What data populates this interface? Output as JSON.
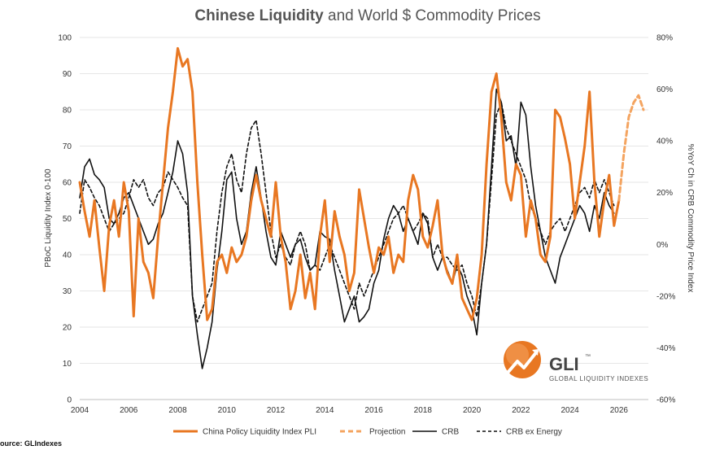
{
  "chart_data": {
    "type": "line",
    "title_bold": "Chinese Liquidity",
    "title_rest": " and World $ Commodity Prices",
    "ylabel_left": "PBoC Liquidity Index 0-100",
    "ylabel_right": "%YoY Ch in CRB Commodity Price Index",
    "xlim": [
      2004,
      2027.2
    ],
    "ylim_left": [
      0,
      100
    ],
    "ylim_right": [
      -60,
      80
    ],
    "x_ticks": [
      2004,
      2006,
      2008,
      2010,
      2012,
      2014,
      2016,
      2018,
      2020,
      2022,
      2024,
      2026
    ],
    "y_ticks_left": [
      0,
      10,
      20,
      30,
      40,
      50,
      60,
      70,
      80,
      90,
      100
    ],
    "y_ticks_right": [
      "-60%",
      "-40%",
      "-20%",
      "0%",
      "20%",
      "40%",
      "60%",
      "80%"
    ],
    "y_ticks_right_values": [
      -60,
      -40,
      -20,
      0,
      20,
      40,
      60,
      80
    ],
    "legend": [
      "China Policy Liquidity Index PLI",
      "Projection",
      "CRB",
      "CRB ex Energy"
    ],
    "series": [
      {
        "name": "China Policy Liquidity Index PLI",
        "axis": "left",
        "color": "#E87722",
        "style": "solid",
        "x": [
          2004.0,
          2004.2,
          2004.4,
          2004.6,
          2004.8,
          2005.0,
          2005.2,
          2005.4,
          2005.6,
          2005.8,
          2006.0,
          2006.2,
          2006.4,
          2006.6,
          2006.8,
          2007.0,
          2007.2,
          2007.4,
          2007.6,
          2007.8,
          2008.0,
          2008.2,
          2008.4,
          2008.6,
          2008.8,
          2009.0,
          2009.2,
          2009.4,
          2009.6,
          2009.8,
          2010.0,
          2010.2,
          2010.4,
          2010.6,
          2010.8,
          2011.0,
          2011.2,
          2011.4,
          2011.6,
          2011.8,
          2012.0,
          2012.2,
          2012.4,
          2012.6,
          2012.8,
          2013.0,
          2013.2,
          2013.4,
          2013.6,
          2013.8,
          2014.0,
          2014.2,
          2014.4,
          2014.6,
          2014.8,
          2015.0,
          2015.2,
          2015.4,
          2015.6,
          2015.8,
          2016.0,
          2016.2,
          2016.4,
          2016.6,
          2016.8,
          2017.0,
          2017.2,
          2017.4,
          2017.6,
          2017.8,
          2018.0,
          2018.2,
          2018.4,
          2018.6,
          2018.8,
          2019.0,
          2019.2,
          2019.4,
          2019.6,
          2019.8,
          2020.0,
          2020.2,
          2020.4,
          2020.6,
          2020.8,
          2021.0,
          2021.2,
          2021.4,
          2021.6,
          2021.8,
          2022.0,
          2022.2,
          2022.4,
          2022.6,
          2022.8,
          2023.0,
          2023.2,
          2023.4,
          2023.6,
          2023.8,
          2024.0,
          2024.2,
          2024.4,
          2024.6,
          2024.8,
          2025.0,
          2025.2,
          2025.4,
          2025.6,
          2025.8,
          2026.0
        ],
        "values": [
          60,
          52,
          45,
          55,
          42,
          30,
          48,
          55,
          45,
          60,
          52,
          23,
          50,
          38,
          35,
          28,
          45,
          60,
          75,
          85,
          97,
          92,
          94,
          85,
          60,
          40,
          22,
          25,
          38,
          40,
          35,
          42,
          38,
          40,
          45,
          55,
          62,
          55,
          50,
          45,
          60,
          45,
          38,
          25,
          30,
          40,
          28,
          35,
          25,
          45,
          55,
          38,
          52,
          45,
          40,
          30,
          35,
          58,
          50,
          42,
          35,
          42,
          40,
          45,
          35,
          40,
          38,
          55,
          62,
          58,
          45,
          42,
          48,
          55,
          40,
          35,
          32,
          40,
          28,
          25,
          22,
          28,
          40,
          65,
          85,
          90,
          78,
          60,
          55,
          65,
          62,
          45,
          55,
          50,
          40,
          38,
          45,
          80,
          78,
          72,
          65,
          50,
          60,
          70,
          85,
          60,
          45,
          55,
          62,
          48,
          55
        ]
      },
      {
        "name": "Projection",
        "axis": "left",
        "color": "#F4A460",
        "style": "dashed",
        "x": [
          2026.0,
          2026.2,
          2026.4,
          2026.6,
          2026.8,
          2027.0
        ],
        "values": [
          55,
          68,
          78,
          82,
          84,
          80
        ]
      },
      {
        "name": "CRB",
        "axis": "right",
        "color": "#111111",
        "style": "solid",
        "x": [
          2004.0,
          2004.2,
          2004.4,
          2004.6,
          2004.8,
          2005.0,
          2005.2,
          2005.4,
          2005.6,
          2005.8,
          2006.0,
          2006.2,
          2006.4,
          2006.6,
          2006.8,
          2007.0,
          2007.2,
          2007.4,
          2007.6,
          2007.8,
          2008.0,
          2008.2,
          2008.4,
          2008.6,
          2008.8,
          2009.0,
          2009.2,
          2009.4,
          2009.6,
          2009.8,
          2010.0,
          2010.2,
          2010.4,
          2010.6,
          2010.8,
          2011.0,
          2011.2,
          2011.4,
          2011.6,
          2011.8,
          2012.0,
          2012.2,
          2012.4,
          2012.6,
          2012.8,
          2013.0,
          2013.2,
          2013.4,
          2013.6,
          2013.8,
          2014.0,
          2014.2,
          2014.4,
          2014.6,
          2014.8,
          2015.0,
          2015.2,
          2015.4,
          2015.6,
          2015.8,
          2016.0,
          2016.2,
          2016.4,
          2016.6,
          2016.8,
          2017.0,
          2017.2,
          2017.4,
          2017.6,
          2017.8,
          2018.0,
          2018.2,
          2018.4,
          2018.6,
          2018.8,
          2019.0,
          2019.2,
          2019.4,
          2019.6,
          2019.8,
          2020.0,
          2020.2,
          2020.4,
          2020.6,
          2020.8,
          2021.0,
          2021.2,
          2021.4,
          2021.6,
          2021.8,
          2022.0,
          2022.2,
          2022.4,
          2022.6,
          2022.8,
          2023.0,
          2023.2,
          2023.4,
          2023.6,
          2023.8,
          2024.0,
          2024.2,
          2024.4,
          2024.6,
          2024.8,
          2025.0,
          2025.2,
          2025.4,
          2025.6,
          2025.8
        ],
        "values": [
          18,
          30,
          33,
          27,
          25,
          22,
          10,
          8,
          12,
          18,
          20,
          15,
          10,
          5,
          0,
          2,
          8,
          12,
          20,
          28,
          40,
          35,
          20,
          -20,
          -35,
          -48,
          -40,
          -30,
          -10,
          5,
          25,
          28,
          10,
          0,
          5,
          20,
          30,
          18,
          5,
          -5,
          -8,
          5,
          0,
          -5,
          0,
          2,
          -5,
          -10,
          -8,
          5,
          3,
          2,
          -10,
          -20,
          -30,
          -25,
          -20,
          -30,
          -28,
          -25,
          -15,
          -10,
          2,
          10,
          15,
          12,
          5,
          10,
          5,
          0,
          12,
          8,
          -5,
          -10,
          -5,
          -10,
          -15,
          -8,
          -12,
          -20,
          -25,
          -35,
          -15,
          0,
          30,
          60,
          55,
          40,
          42,
          30,
          55,
          50,
          30,
          15,
          5,
          -5,
          -10,
          -15,
          -5,
          0,
          5,
          10,
          15,
          12,
          5,
          15,
          10,
          20,
          15,
          12
        ]
      },
      {
        "name": "CRB ex Energy",
        "axis": "right",
        "color": "#111111",
        "style": "dashed",
        "x": [
          2004.0,
          2004.2,
          2004.4,
          2004.6,
          2004.8,
          2005.0,
          2005.2,
          2005.4,
          2005.6,
          2005.8,
          2006.0,
          2006.2,
          2006.4,
          2006.6,
          2006.8,
          2007.0,
          2007.2,
          2007.4,
          2007.6,
          2007.8,
          2008.0,
          2008.2,
          2008.4,
          2008.6,
          2008.8,
          2009.0,
          2009.2,
          2009.4,
          2009.6,
          2009.8,
          2010.0,
          2010.2,
          2010.4,
          2010.6,
          2010.8,
          2011.0,
          2011.2,
          2011.4,
          2011.6,
          2011.8,
          2012.0,
          2012.2,
          2012.4,
          2012.6,
          2012.8,
          2013.0,
          2013.2,
          2013.4,
          2013.6,
          2013.8,
          2014.0,
          2014.2,
          2014.4,
          2014.6,
          2014.8,
          2015.0,
          2015.2,
          2015.4,
          2015.6,
          2015.8,
          2016.0,
          2016.2,
          2016.4,
          2016.6,
          2016.8,
          2017.0,
          2017.2,
          2017.4,
          2017.6,
          2017.8,
          2018.0,
          2018.2,
          2018.4,
          2018.6,
          2018.8,
          2019.0,
          2019.2,
          2019.4,
          2019.6,
          2019.8,
          2020.0,
          2020.2,
          2020.4,
          2020.6,
          2020.8,
          2021.0,
          2021.2,
          2021.4,
          2021.6,
          2021.8,
          2022.0,
          2022.2,
          2022.4,
          2022.6,
          2022.8,
          2023.0,
          2023.2,
          2023.4,
          2023.6,
          2023.8,
          2024.0,
          2024.2,
          2024.4,
          2024.6,
          2024.8,
          2025.0,
          2025.2,
          2025.4,
          2025.6,
          2025.8
        ],
        "values": [
          12,
          25,
          22,
          18,
          15,
          10,
          5,
          8,
          10,
          12,
          18,
          25,
          22,
          25,
          18,
          15,
          20,
          22,
          28,
          25,
          22,
          18,
          15,
          -20,
          -30,
          -25,
          -20,
          -15,
          5,
          20,
          30,
          35,
          25,
          20,
          35,
          45,
          48,
          35,
          20,
          5,
          -5,
          0,
          -5,
          -8,
          0,
          5,
          0,
          -10,
          -8,
          -10,
          -5,
          0,
          -5,
          -10,
          -15,
          -20,
          -25,
          -15,
          -20,
          -15,
          -10,
          -5,
          0,
          5,
          10,
          12,
          15,
          10,
          5,
          8,
          12,
          10,
          -5,
          0,
          -5,
          -5,
          -8,
          -10,
          -8,
          -15,
          -20,
          -28,
          -15,
          0,
          25,
          50,
          55,
          45,
          40,
          35,
          30,
          25,
          15,
          10,
          5,
          0,
          5,
          8,
          10,
          5,
          10,
          15,
          20,
          22,
          18,
          25,
          20,
          25,
          20,
          15
        ]
      }
    ]
  },
  "source": "ource: GLIndexes",
  "logo": {
    "name": "GLI",
    "tm": "™",
    "subtitle": "GLOBAL LIQUIDITY INDEXES"
  }
}
